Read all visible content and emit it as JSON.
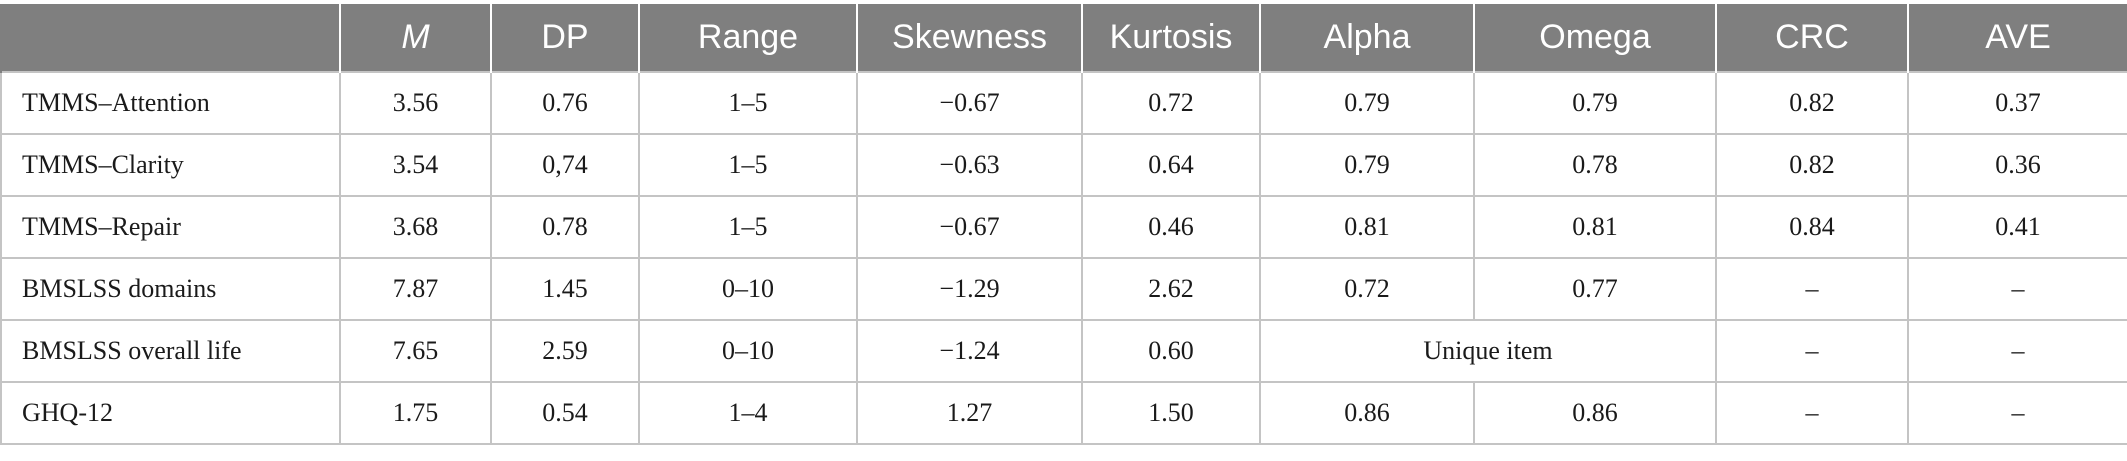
{
  "table": {
    "headers": [
      "",
      "M",
      "DP",
      "Range",
      "Skewness",
      "Kurtosis",
      "Alpha",
      "Omega",
      "CRC",
      "AVE"
    ],
    "rows": [
      {
        "label": "TMMS–Attention",
        "M": "3.56",
        "DP": "0.76",
        "Range": "1–5",
        "Skewness": "−0.67",
        "Kurtosis": "0.72",
        "Alpha": "0.79",
        "Omega": "0.79",
        "CRC": "0.82",
        "AVE": "0.37"
      },
      {
        "label": "TMMS–Clarity",
        "M": "3.54",
        "DP": "0,74",
        "Range": "1–5",
        "Skewness": "−0.63",
        "Kurtosis": "0.64",
        "Alpha": "0.79",
        "Omega": "0.78",
        "CRC": "0.82",
        "AVE": "0.36"
      },
      {
        "label": "TMMS–Repair",
        "M": "3.68",
        "DP": "0.78",
        "Range": "1–5",
        "Skewness": "−0.67",
        "Kurtosis": "0.46",
        "Alpha": "0.81",
        "Omega": "0.81",
        "CRC": "0.84",
        "AVE": "0.41"
      },
      {
        "label": "BMSLSS domains",
        "M": "7.87",
        "DP": "1.45",
        "Range": "0–10",
        "Skewness": "−1.29",
        "Kurtosis": "2.62",
        "Alpha": "0.72",
        "Omega": "0.77",
        "CRC": "–",
        "AVE": "–"
      },
      {
        "label": "BMSLSS overall life",
        "M": "7.65",
        "DP": "2.59",
        "Range": "0–10",
        "Skewness": "−1.24",
        "Kurtosis": "0.60",
        "AlphaOmega": "Unique item",
        "CRC": "–",
        "AVE": "–"
      },
      {
        "label": "GHQ-12",
        "M": "1.75",
        "DP": "0.54",
        "Range": "1–4",
        "Skewness": "1.27",
        "Kurtosis": "1.50",
        "Alpha": "0.86",
        "Omega": "0.86",
        "CRC": "–",
        "AVE": "–"
      }
    ]
  }
}
